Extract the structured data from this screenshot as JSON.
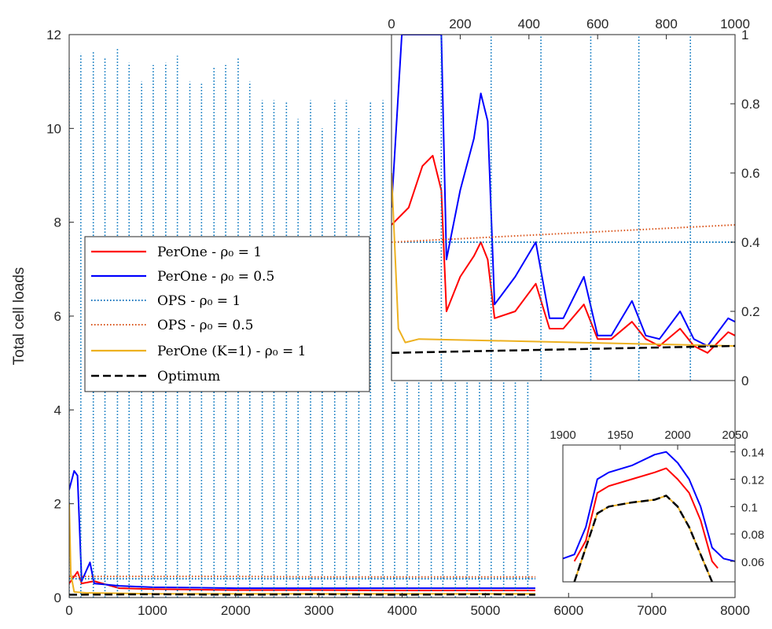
{
  "chart_data": [
    {
      "panel": "main",
      "type": "line",
      "title": "",
      "xlabel": "",
      "ylabel": "Total cell loads",
      "xlim": [
        0,
        8000
      ],
      "ylim": [
        0,
        12
      ],
      "xticks": [
        "0",
        "1000",
        "2000",
        "3000",
        "4000",
        "5000",
        "6000",
        "7000",
        "8000"
      ],
      "yticks": [
        "0",
        "2",
        "4",
        "6",
        "8",
        "10",
        "12"
      ],
      "legend_location": "center-left",
      "series": [
        {
          "name": "PerOne - ρ0 = 1",
          "color": "#ff0000",
          "style": "solid",
          "x": [
            0,
            100,
            150,
            300,
            600,
            1000,
            2000,
            3000,
            4000,
            5000,
            5600
          ],
          "y": [
            0.3,
            0.55,
            0.3,
            0.35,
            0.2,
            0.18,
            0.16,
            0.16,
            0.15,
            0.15,
            0.15
          ]
        },
        {
          "name": "PerOne - ρ0 = 0.5",
          "color": "#0000ff",
          "style": "solid",
          "x": [
            0,
            60,
            100,
            150,
            250,
            300,
            600,
            1000,
            2000,
            3000,
            4000,
            5000,
            5600
          ],
          "y": [
            2.3,
            2.7,
            2.6,
            0.35,
            0.75,
            0.3,
            0.25,
            0.22,
            0.2,
            0.2,
            0.2,
            0.2,
            0.2
          ]
        },
        {
          "name": "OPS - ρ0 = 1",
          "color": "#0072bd",
          "style": "dotted",
          "x": [
            0,
            5600
          ],
          "y": [
            0.4,
            0.4
          ],
          "spike_x": [
            0,
            140,
            290,
            430,
            580,
            720,
            870,
            1010,
            1160,
            1300,
            1450,
            1590,
            1740,
            1880,
            2030,
            2170,
            2320,
            2460,
            2610,
            2750,
            2900,
            3040,
            3190,
            3330,
            3480,
            3620,
            3770,
            3910,
            4060,
            4200,
            4350,
            4490,
            4640,
            4780,
            4930,
            5070,
            5220,
            5360,
            5510
          ],
          "spike_y": [
            11.3,
            11.6,
            11.65,
            11.5,
            11.7,
            11.4,
            11.0,
            11.35,
            11.4,
            11.55,
            11.0,
            10.95,
            11.3,
            11.35,
            11.5,
            11.0,
            10.6,
            10.6,
            10.55,
            10.2,
            10.6,
            10.0,
            10.6,
            10.6,
            10.0,
            10.55,
            10.6,
            11.0,
            10.2,
            10.0,
            10.5,
            10.0,
            10.5,
            10.0,
            10.0,
            10.0,
            10.0,
            10.5,
            10.0
          ]
        },
        {
          "name": "OPS - ρ0 = 0.5",
          "color": "#d95319",
          "style": "dotted",
          "x": [
            0,
            1000,
            2000,
            3000,
            4000,
            5000,
            5600
          ],
          "y": [
            0.45,
            0.45,
            0.45,
            0.44,
            0.44,
            0.44,
            0.44
          ]
        },
        {
          "name": "PerOne (K=1) - ρ0 = 1",
          "color": "#edb120",
          "style": "solid",
          "x": [
            0,
            20,
            60,
            200,
            1000,
            2000,
            3000,
            4000,
            5000,
            5600
          ],
          "y": [
            2.0,
            0.5,
            0.12,
            0.1,
            0.08,
            0.08,
            0.08,
            0.08,
            0.08,
            0.08
          ]
        },
        {
          "name": "Optimum",
          "color": "#000000",
          "style": "dashed",
          "x": [
            0,
            1000,
            2000,
            3000,
            4000,
            5000,
            5600
          ],
          "y": [
            0.06,
            0.07,
            0.06,
            0.07,
            0.06,
            0.07,
            0.06
          ]
        }
      ]
    },
    {
      "panel": "inset-top-right",
      "type": "line",
      "xlim": [
        0,
        1000
      ],
      "ylim": [
        0,
        1
      ],
      "xticks": [
        "0",
        "200",
        "400",
        "600",
        "800",
        "1000"
      ],
      "yticks": [
        "0",
        "0.2",
        "0.4",
        "0.6",
        "0.8",
        "1"
      ],
      "series": [
        {
          "name": "PerOne - ρ0 = 1",
          "x": [
            0,
            50,
            90,
            120,
            145,
            160,
            200,
            240,
            260,
            280,
            300,
            360,
            420,
            460,
            500,
            560,
            600,
            640,
            700,
            740,
            780,
            840,
            880,
            920,
            980,
            1000
          ],
          "y": [
            0.45,
            0.5,
            0.62,
            0.65,
            0.55,
            0.2,
            0.3,
            0.36,
            0.4,
            0.35,
            0.18,
            0.2,
            0.28,
            0.15,
            0.15,
            0.22,
            0.12,
            0.12,
            0.17,
            0.12,
            0.1,
            0.15,
            0.1,
            0.08,
            0.14,
            0.13
          ]
        },
        {
          "name": "PerOne - ρ0 = 0.5",
          "x": [
            0,
            30,
            60,
            120,
            145,
            160,
            200,
            240,
            260,
            280,
            300,
            360,
            420,
            460,
            500,
            560,
            600,
            640,
            700,
            740,
            780,
            840,
            880,
            920,
            980,
            1000
          ],
          "y": [
            0.5,
            1.0,
            1.0,
            1.0,
            1.0,
            0.35,
            0.55,
            0.7,
            0.83,
            0.75,
            0.22,
            0.3,
            0.4,
            0.18,
            0.18,
            0.3,
            0.13,
            0.13,
            0.23,
            0.13,
            0.12,
            0.2,
            0.12,
            0.1,
            0.18,
            0.17
          ]
        },
        {
          "name": "OPS - ρ0 = 1",
          "x": [
            0,
            1000
          ],
          "y": [
            0.4,
            0.4
          ],
          "spike_x": [
            145,
            290,
            435,
            580,
            720,
            870
          ],
          "spike_y": [
            1,
            1,
            1,
            1,
            1,
            1
          ]
        },
        {
          "name": "OPS - ρ0 = 0.5",
          "x": [
            0,
            1000
          ],
          "y": [
            0.4,
            0.45
          ]
        },
        {
          "name": "PerOne (K=1) - ρ0 = 1",
          "x": [
            0,
            20,
            40,
            80,
            1000
          ],
          "y": [
            0.6,
            0.15,
            0.11,
            0.12,
            0.1
          ]
        },
        {
          "name": "Optimum",
          "x": [
            0,
            1000
          ],
          "y": [
            0.08,
            0.1
          ]
        }
      ]
    },
    {
      "panel": "inset-bottom-right",
      "type": "line",
      "xlim": [
        1900,
        2050
      ],
      "ylim": [
        0.045,
        0.145
      ],
      "xticks": [
        "1900",
        "1950",
        "2000",
        "2050"
      ],
      "yticks": [
        "0.06",
        "0.08",
        "0.1",
        "0.12",
        "0.14"
      ],
      "series": [
        {
          "name": "PerOne - ρ0 = 0.5",
          "color": "#0000ff",
          "x": [
            1900,
            1910,
            1920,
            1930,
            1940,
            1960,
            1980,
            1990,
            2000,
            2010,
            2020,
            2030,
            2040,
            2050
          ],
          "y": [
            0.062,
            0.065,
            0.085,
            0.12,
            0.125,
            0.13,
            0.138,
            0.14,
            0.132,
            0.12,
            0.1,
            0.07,
            0.062,
            0.06
          ]
        },
        {
          "name": "PerOne - ρ0 = 1",
          "color": "#ff0000",
          "x": [
            1910,
            1920,
            1930,
            1940,
            1960,
            1980,
            1990,
            2000,
            2010,
            2020,
            2030,
            2035
          ],
          "y": [
            0.06,
            0.075,
            0.11,
            0.115,
            0.12,
            0.125,
            0.128,
            0.12,
            0.11,
            0.09,
            0.06,
            0.055
          ]
        },
        {
          "name": "PerOne (K=1) - ρ0 = 1",
          "color": "#edb120",
          "x": [
            1910,
            1920,
            1930,
            1940,
            1960,
            1980,
            1990,
            2000,
            2010,
            2020,
            2030
          ],
          "y": [
            0.045,
            0.07,
            0.095,
            0.1,
            0.103,
            0.105,
            0.108,
            0.1,
            0.085,
            0.065,
            0.045
          ]
        },
        {
          "name": "Optimum",
          "color": "#000000",
          "x": [
            1910,
            1920,
            1930,
            1940,
            1960,
            1980,
            1990,
            2000,
            2010,
            2020,
            2030
          ],
          "y": [
            0.045,
            0.07,
            0.095,
            0.1,
            0.103,
            0.105,
            0.108,
            0.1,
            0.085,
            0.065,
            0.045
          ]
        }
      ]
    }
  ],
  "legend": {
    "entries": [
      {
        "label": "PerOne - ρ₀ = 1",
        "color": "#ff0000",
        "style": "solid"
      },
      {
        "label": "PerOne - ρ₀ = 0.5",
        "color": "#0000ff",
        "style": "solid"
      },
      {
        "label": "OPS - ρ₀ = 1",
        "color": "#0072bd",
        "style": "dotted"
      },
      {
        "label": "OPS - ρ₀ = 0.5",
        "color": "#d95319",
        "style": "dotted"
      },
      {
        "label": "PerOne (K=1) - ρ₀ = 1",
        "color": "#edb120",
        "style": "solid"
      },
      {
        "label": "Optimum",
        "color": "#000000",
        "style": "dashed"
      }
    ]
  }
}
